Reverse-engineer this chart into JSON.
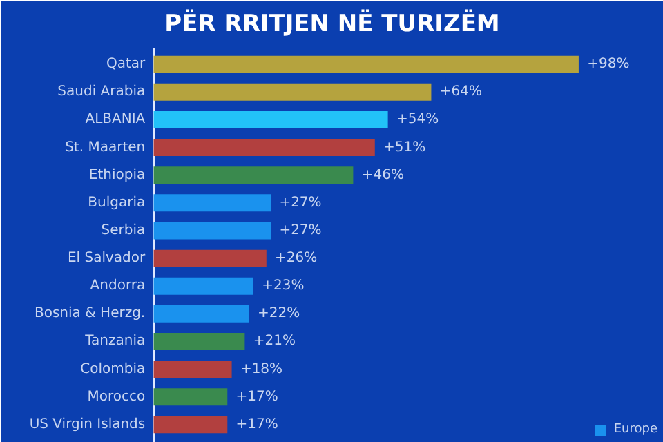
{
  "chart_data": {
    "type": "bar",
    "orientation": "horizontal",
    "title": "PËR RRITJEN NË TURIZËM",
    "categories": [
      "Qatar",
      "Saudi Arabia",
      "ALBANIA",
      "St. Maarten",
      "Ethiopia",
      "Bulgaria",
      "Serbia",
      "El Salvador",
      "Andorra",
      "Bosnia & Herzg.",
      "Tanzania",
      "Colombia",
      "Morocco",
      "US Virgin Islands"
    ],
    "series": [
      {
        "color": "#b5a33e",
        "values": [
          98,
          64,
          null,
          null,
          null,
          null,
          null,
          null,
          null,
          null,
          null,
          null,
          null,
          null
        ],
        "value_labels": [
          "+98%",
          "+64%",
          null,
          null,
          null,
          null,
          null,
          null,
          null,
          null,
          null,
          null,
          null,
          null
        ]
      },
      {
        "color": "#22c2f8",
        "values": [
          null,
          null,
          54,
          null,
          null,
          null,
          null,
          null,
          null,
          null,
          null,
          null,
          null,
          null
        ],
        "value_labels": [
          null,
          null,
          "+54%",
          null,
          null,
          null,
          null,
          null,
          null,
          null,
          null,
          null,
          null,
          null
        ]
      },
      {
        "color": "#b2403f",
        "values": [
          null,
          null,
          null,
          51,
          null,
          null,
          null,
          26,
          null,
          null,
          null,
          18,
          null,
          17
        ],
        "value_labels": [
          null,
          null,
          null,
          "+51%",
          null,
          null,
          null,
          "+26%",
          null,
          null,
          null,
          "+18%",
          null,
          "+17%"
        ]
      },
      {
        "color": "#3a8a4e",
        "values": [
          null,
          null,
          null,
          null,
          46,
          null,
          null,
          null,
          null,
          null,
          21,
          null,
          17,
          null
        ],
        "value_labels": [
          null,
          null,
          null,
          null,
          "+46%",
          null,
          null,
          null,
          null,
          null,
          "+21%",
          null,
          "+17%",
          null
        ]
      },
      {
        "name": "Europe",
        "color": "#1a92ee",
        "values": [
          null,
          null,
          null,
          null,
          null,
          27,
          27,
          null,
          23,
          22,
          null,
          null,
          null,
          null
        ],
        "value_labels": [
          null,
          null,
          null,
          null,
          null,
          "+27%",
          "+27%",
          null,
          "+23%",
          "+22%",
          null,
          null,
          null,
          null
        ]
      }
    ],
    "legend": "bottom right",
    "grid": false
  }
}
